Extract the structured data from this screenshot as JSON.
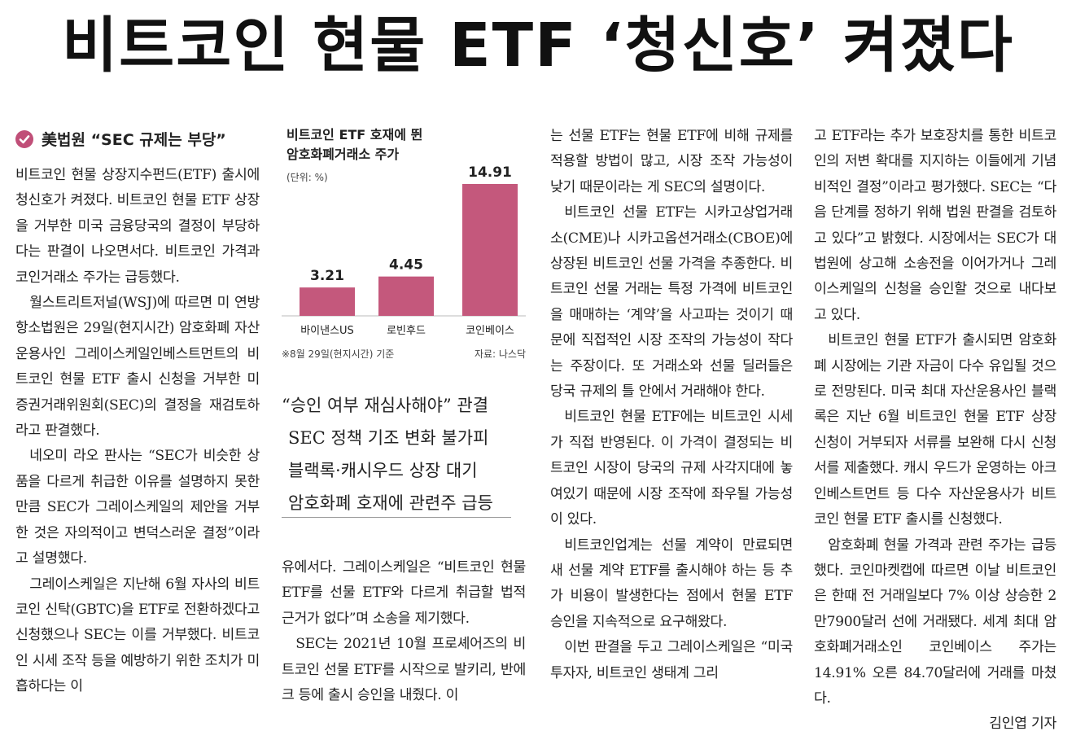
{
  "headline": "비트코인 현물 ETF ‘청신호’ 켜졌다",
  "subhead": "美법원 “SEC 규제는 부당”",
  "chart_data": {
    "type": "bar",
    "title": [
      "비트코인 ETF 호재에 뛴",
      "암호화폐거래소 주가"
    ],
    "unit": "(단위: %)",
    "categories": [
      "바이낸스US",
      "로빈후드",
      "코인베이스"
    ],
    "values": [
      3.21,
      4.45,
      14.91
    ],
    "value_labels": [
      "3.21",
      "4.45",
      "14.91"
    ],
    "bar_color": "#c4587c",
    "note": "※8월 29일(현지시간) 기준",
    "source": "자료: 나스닥"
  },
  "pull_quotes": [
    "“승인 여부 재심사해야” 관결",
    "SEC 정책 기조 변화 불가피",
    "블랙록·캐시우드 상장 대기",
    "암호화폐 호재에 관련주 급등"
  ],
  "col1": [
    "비트코인 현물 상장지수펀드(ETF) 출시에 청신호가 켜졌다. 비트코인 현물 ETF 상장을 거부한 미국 금융당국의 결정이 부당하다는 판결이 나오면서다. 비트코인 가격과 코인거래소 주가는 급등했다.",
    "월스트리트저널(WSJ)에 따르면 미 연방항소법원은 29일(현지시간) 암호화폐 자산운용사인 그레이스케일인베스트먼트의 비트코인 현물 ETF 출시 신청을 거부한 미 증권거래위원회(SEC)의 결정을 재검토하라고 판결했다.",
    "네오미 라오 판사는 “SEC가 비슷한 상품을 다르게 취급한 이유를 설명하지 못한 만큼 SEC가 그레이스케일의 제안을 거부한 것은 자의적이고 변덕스러운 결정”이라고 설명했다.",
    "그레이스케일은 지난해 6월 자사의 비트코인 신탁(GBTC)을 ETF로 전환하겠다고 신청했으나 SEC는 이를 거부했다. 비트코인 시세 조작 등을 예방하기 위한 조치가 미흡하다는 이"
  ],
  "col2": [
    "유에서다. 그레이스케일은 “비트코인 현물 ETF를 선물 ETF와 다르게 취급할 법적 근거가 없다”며 소송을 제기했다.",
    "SEC는 2021년 10월 프로셰어즈의 비트코인 선물 ETF를 시작으로 발키리, 반에크 등에 출시 승인을 내줬다. 이"
  ],
  "col3": [
    "는 선물 ETF는 현물 ETF에 비해 규제를 적용할 방법이 많고, 시장 조작 가능성이 낮기 때문이라는 게 SEC의 설명이다.",
    "비트코인 선물 ETF는 시카고상업거래소(CME)나 시카고옵션거래소(CBOE)에 상장된 비트코인 선물 가격을 추종한다. 비트코인 선물 거래는 특정 가격에 비트코인을 매매하는 ‘계약’을 사고파는 것이기 때문에 직접적인 시장 조작의 가능성이 작다는 주장이다. 또 거래소와 선물 딜러들은 당국 규제의 틀 안에서 거래해야 한다.",
    "비트코인 현물 ETF에는 비트코인 시세가 직접 반영된다. 이 가격이 결정되는 비트코인 시장이 당국의 규제 사각지대에 놓여있기 때문에 시장 조작에 좌우될 가능성이 있다.",
    "비트코인업계는 선물 계약이 만료되면 새 선물 계약 ETF를 출시해야 하는 등 추가 비용이 발생한다는 점에서 현물 ETF 승인을 지속적으로 요구해왔다.",
    "이번 판결을 두고 그레이스케일은 “미국 투자자, 비트코인 생태계 그리"
  ],
  "col4": [
    "고 ETF라는 추가 보호장치를 통한 비트코인의 저변 확대를 지지하는 이들에게 기념비적인 결정”이라고 평가했다. SEC는 “다음 단계를 정하기 위해 법원 판결을 검토하고 있다”고 밝혔다. 시장에서는 SEC가 대법원에 상고해 소송전을 이어가거나 그레이스케일의 신청을 승인할 것으로 내다보고 있다.",
    "비트코인 현물 ETF가 출시되면 암호화폐 시장에는 기관 자금이 다수 유입될 것으로 전망된다. 미국 최대 자산운용사인 블랙록은 지난 6월 비트코인 현물 ETF 상장 신청이 거부되자 서류를 보완해 다시 신청서를 제출했다. 캐시 우드가 운영하는 아크인베스트먼트 등 다수 자산운용사가 비트코인 현물 ETF 출시를 신청했다.",
    "암호화폐 현물 가격과 관련 주가는 급등했다. 코인마켓캡에 따르면 이날 비트코인은 한때 전 거래일보다 7% 이상 상승한 2만7900달러 선에 거래됐다. 세계 최대 암호화폐거래소인 코인베이스 주가는 14.91% 오른 84.70달러에 거래를 마쳤다."
  ],
  "byline": "김인엽 기자"
}
